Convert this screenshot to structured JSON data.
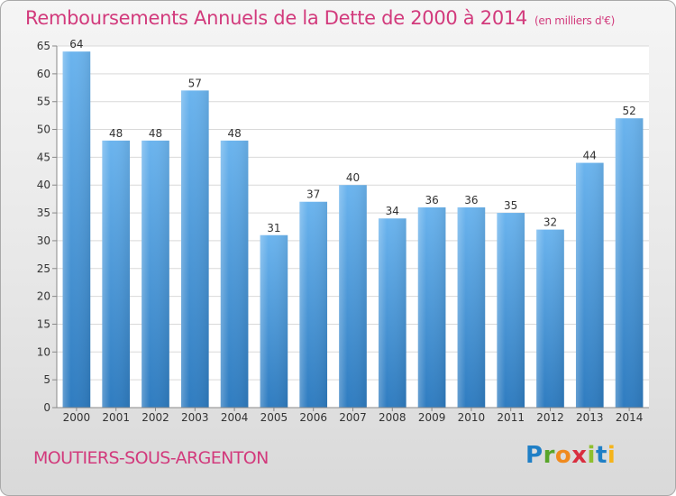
{
  "header": {
    "title": "Remboursements Annuels de la Dette de 2000 à 2014",
    "unit": "(en milliers d'€)"
  },
  "footer": {
    "commune": "MOUTIERS-SOUS-ARGENTON",
    "logo": "Proxiti"
  },
  "colors": {
    "title": "#d23a7c",
    "bar_light": "#6bb4ee",
    "bar_dark": "#2f7cc0"
  },
  "chart_data": {
    "type": "bar",
    "title": "Remboursements Annuels de la Dette de 2000 à 2014",
    "xlabel": "",
    "ylabel": "",
    "categories": [
      "2000",
      "2001",
      "2002",
      "2003",
      "2004",
      "2005",
      "2006",
      "2007",
      "2008",
      "2009",
      "2010",
      "2011",
      "2012",
      "2013",
      "2014"
    ],
    "values": [
      64,
      48,
      48,
      57,
      48,
      31,
      37,
      40,
      34,
      36,
      36,
      35,
      32,
      44,
      52
    ],
    "ylim": [
      0,
      65
    ],
    "yticks": [
      0,
      5,
      10,
      15,
      20,
      25,
      30,
      35,
      40,
      45,
      50,
      55,
      60,
      65
    ],
    "grid": true
  }
}
